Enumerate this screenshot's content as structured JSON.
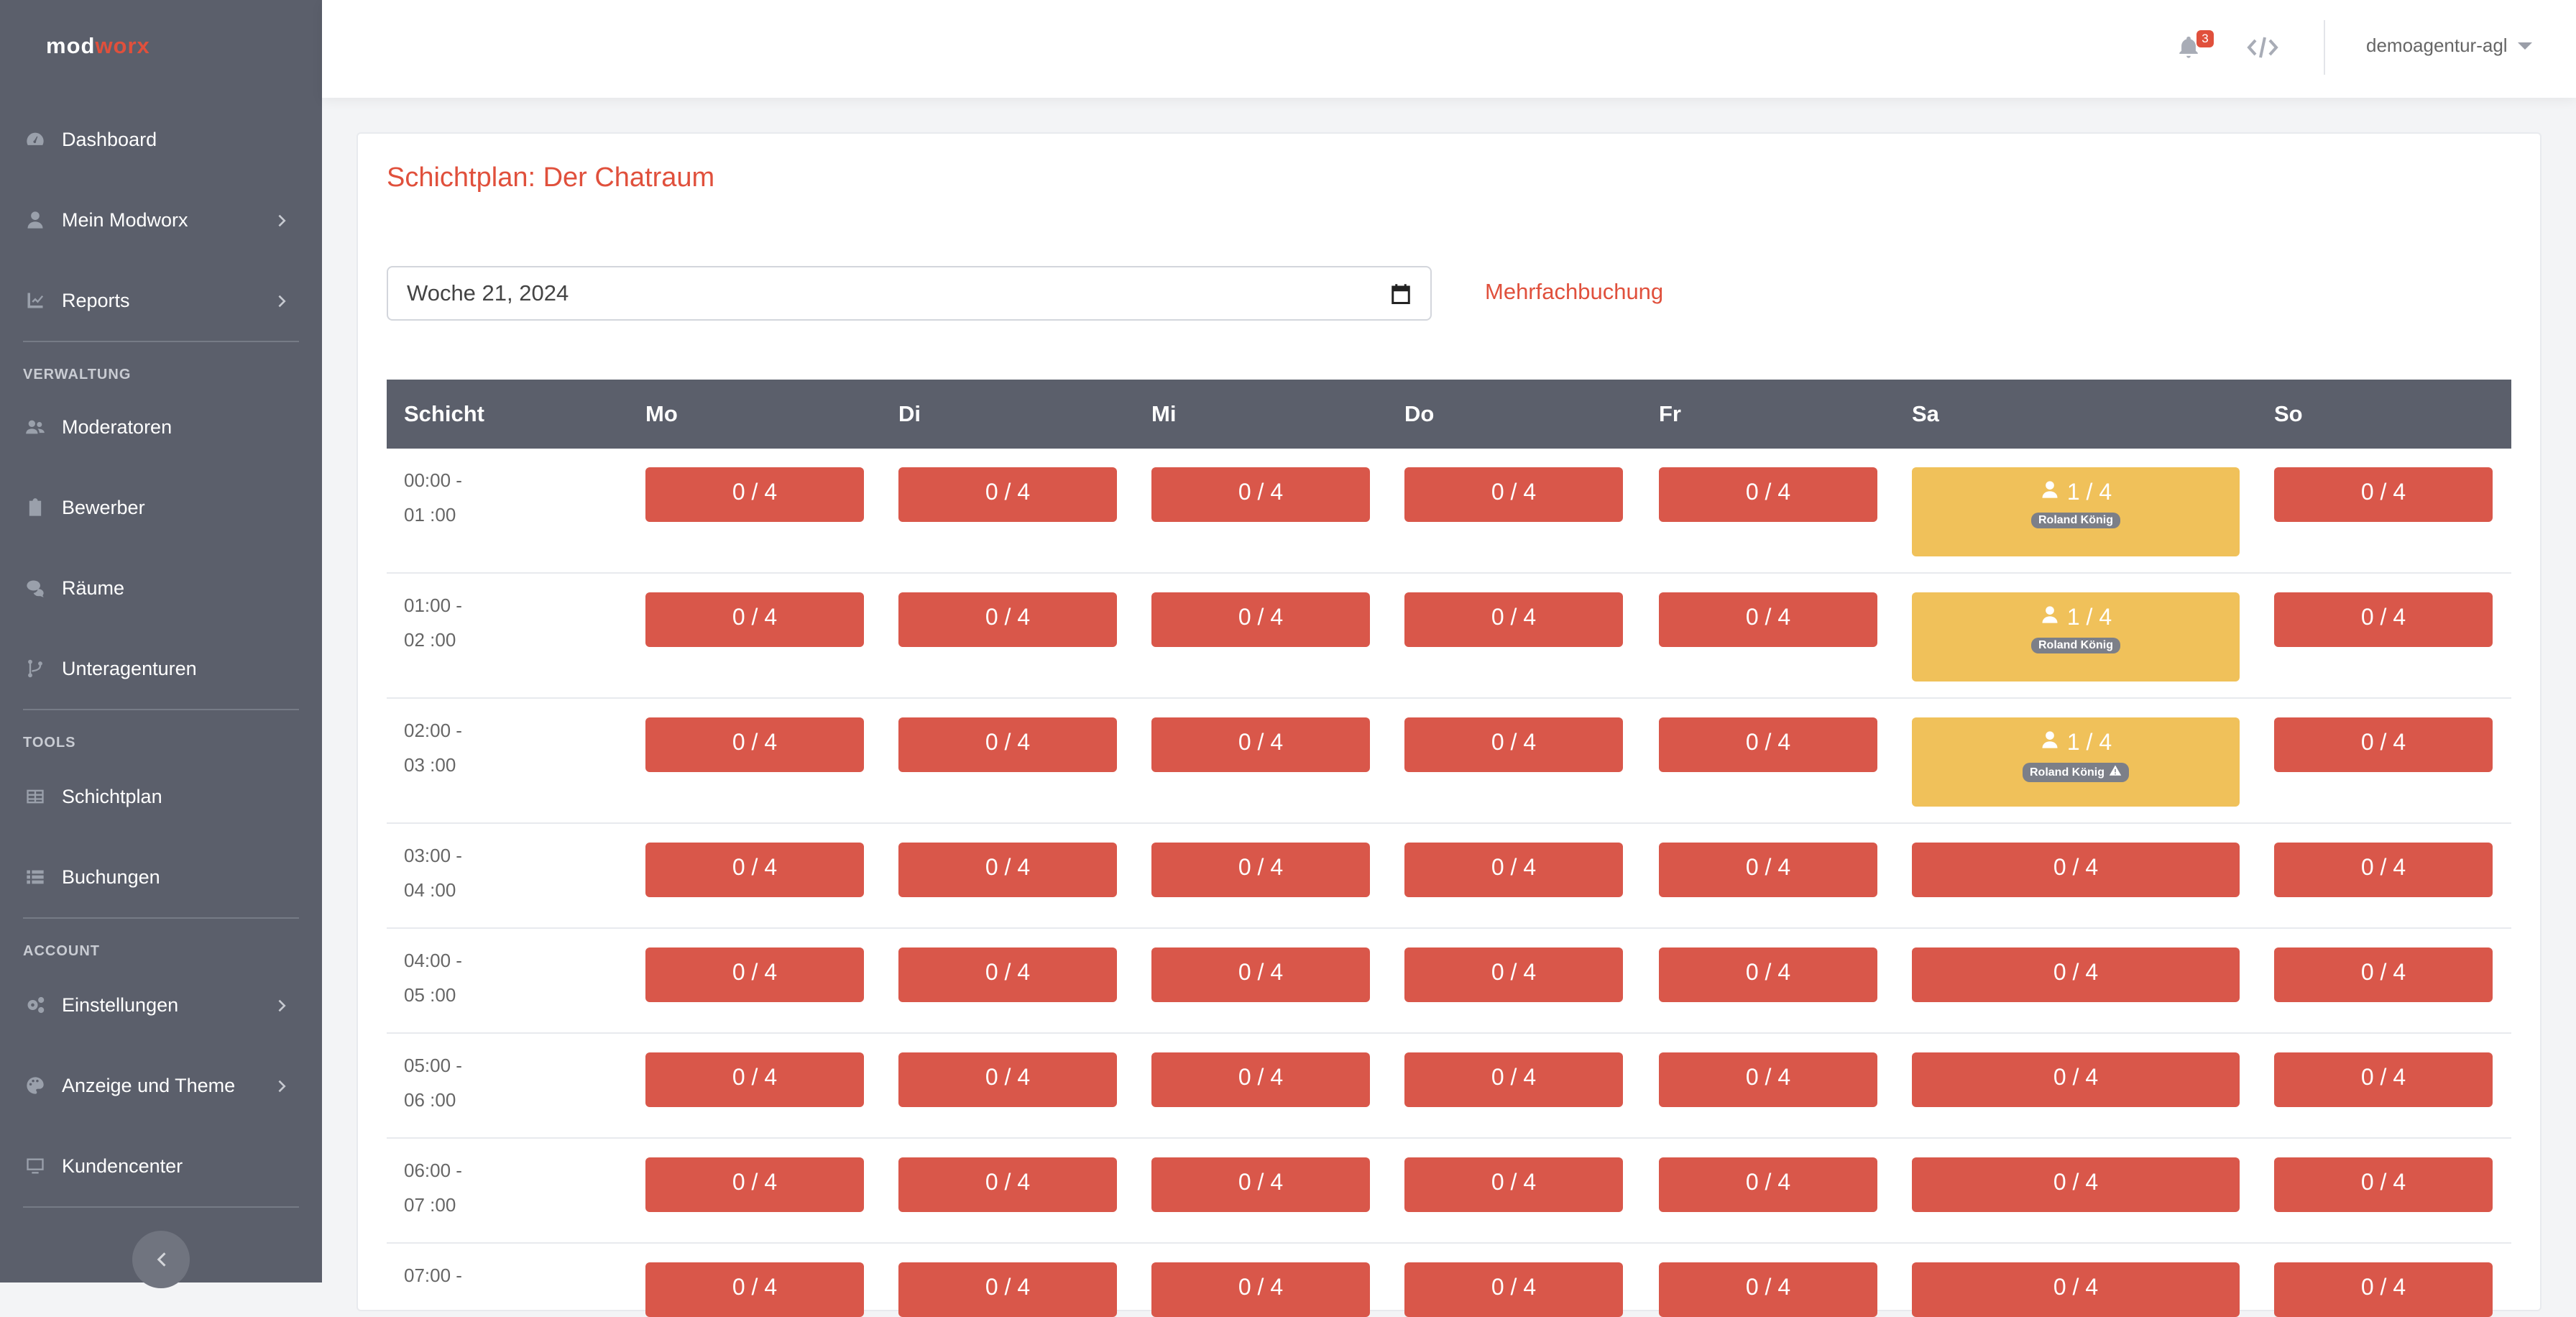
{
  "app": {
    "logo_a": "mod",
    "logo_b": "worx"
  },
  "sidebar": {
    "items": [
      {
        "label": "Dashboard",
        "icon": "gauge-icon",
        "chevron": false
      },
      {
        "label": "Mein Modworx",
        "icon": "user-icon",
        "chevron": true
      },
      {
        "label": "Reports",
        "icon": "chart-icon",
        "chevron": true
      },
      {
        "label": "Moderatoren",
        "icon": "users-icon",
        "chevron": false
      },
      {
        "label": "Bewerber",
        "icon": "clipboard-icon",
        "chevron": false
      },
      {
        "label": "Räume",
        "icon": "chat-icon",
        "chevron": false
      },
      {
        "label": "Unteragenturen",
        "icon": "branch-icon",
        "chevron": false
      },
      {
        "label": "Schichtplan",
        "icon": "table-icon",
        "chevron": false
      },
      {
        "label": "Buchungen",
        "icon": "list-icon",
        "chevron": false
      },
      {
        "label": "Einstellungen",
        "icon": "gears-icon",
        "chevron": true
      },
      {
        "label": "Anzeige und Theme",
        "icon": "palette-icon",
        "chevron": true
      },
      {
        "label": "Kundencenter",
        "icon": "monitor-icon",
        "chevron": false
      }
    ],
    "sections": {
      "verwaltung": "VERWALTUNG",
      "tools": "TOOLS",
      "account": "ACCOUNT"
    }
  },
  "header": {
    "notification_count": "3",
    "user": "demoagentur-agl"
  },
  "page": {
    "title": "Schichtplan: Der Chatraum",
    "week_value": "Woche 21, 2024",
    "multi_booking": "Mehrfachbuchung"
  },
  "table": {
    "headers": [
      "Schicht",
      "Mo",
      "Di",
      "Mi",
      "Do",
      "Fr",
      "Sa",
      "So"
    ],
    "rows": [
      {
        "time_a": "00:00 -",
        "time_b": "01 :00",
        "sa_count": "1 / 4",
        "sa_name": "Roland König",
        "sa_warn": false
      },
      {
        "time_a": "01:00 -",
        "time_b": "02 :00",
        "sa_count": "1 / 4",
        "sa_name": "Roland König",
        "sa_warn": false
      },
      {
        "time_a": "02:00 -",
        "time_b": "03 :00",
        "sa_count": "1 / 4",
        "sa_name": "Roland König",
        "sa_warn": true
      },
      {
        "time_a": "03:00 -",
        "time_b": "04 :00",
        "sa_count": "0 / 4"
      },
      {
        "time_a": "04:00 -",
        "time_b": "05 :00",
        "sa_count": "0 / 4"
      },
      {
        "time_a": "05:00 -",
        "time_b": "06 :00",
        "sa_count": "0 / 4"
      },
      {
        "time_a": "06:00 -",
        "time_b": "07 :00",
        "sa_count": "0 / 4"
      },
      {
        "time_a": "07:00 -",
        "time_b": "",
        "sa_count": "0 / 4"
      }
    ],
    "empty_label": "0 / 4"
  },
  "colors": {
    "accent": "#e0503c",
    "sidebar": "#5b5f6b",
    "slot_red": "#d9574a",
    "slot_yellow": "#f0c15a"
  }
}
